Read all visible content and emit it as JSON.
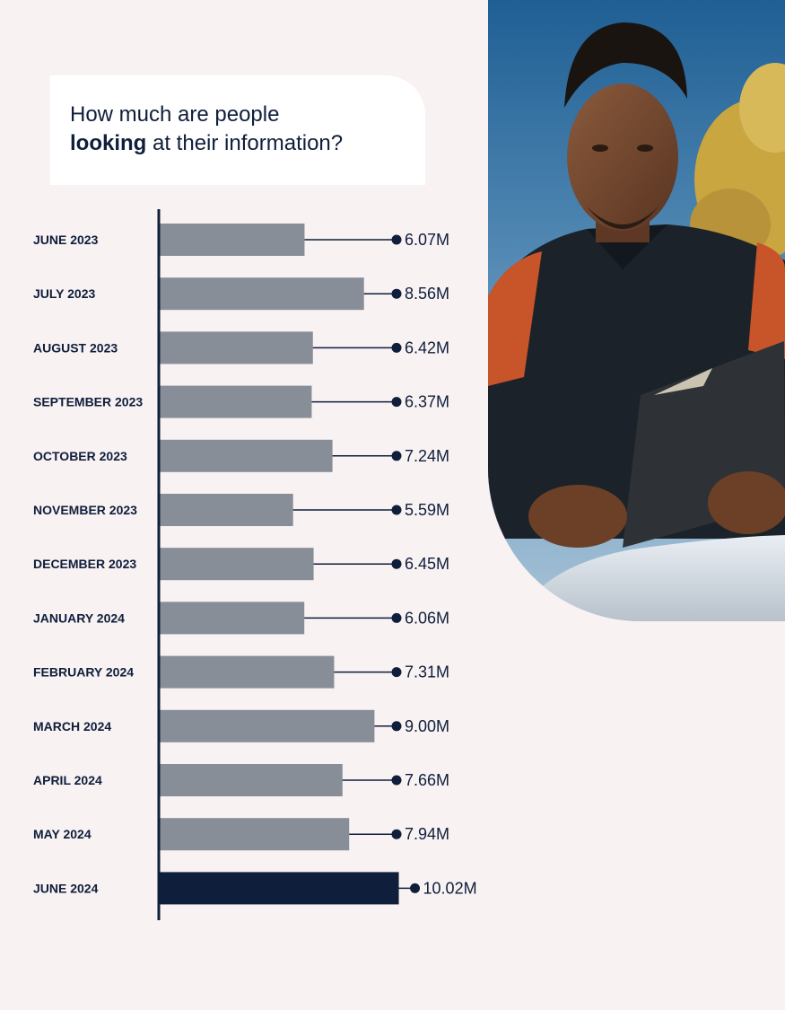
{
  "title": {
    "line1": "How much are people",
    "bold_word": "looking",
    "line2_rest": " at their information?"
  },
  "colors": {
    "background": "#f8f2f3",
    "bar": "#878e98",
    "bar_highlight": "#0f1e3a",
    "text": "#0f1e3a"
  },
  "chart_data": {
    "type": "bar",
    "orientation": "horizontal",
    "categories": [
      "JUNE 2023",
      "JULY 2023",
      "AUGUST 2023",
      "SEPTEMBER 2023",
      "OCTOBER 2023",
      "NOVEMBER 2023",
      "DECEMBER 2023",
      "JANUARY 2024",
      "FEBRUARY 2024",
      "MARCH 2024",
      "APRIL 2024",
      "MAY 2024",
      "JUNE 2024"
    ],
    "values": [
      6.07,
      8.56,
      6.42,
      6.37,
      7.24,
      5.59,
      6.45,
      6.06,
      7.31,
      9.0,
      7.66,
      7.94,
      10.02
    ],
    "value_labels": [
      "6.07M",
      "8.56M",
      "6.42M",
      "6.37M",
      "7.24M",
      "5.59M",
      "6.45M",
      "6.06M",
      "7.31M",
      "9.00M",
      "7.66M",
      "7.94M",
      "10.02M"
    ],
    "highlight_index": 12,
    "title": "How much are people looking at their information?",
    "xlabel": "",
    "ylabel": "",
    "grid": false,
    "legend": "none"
  }
}
